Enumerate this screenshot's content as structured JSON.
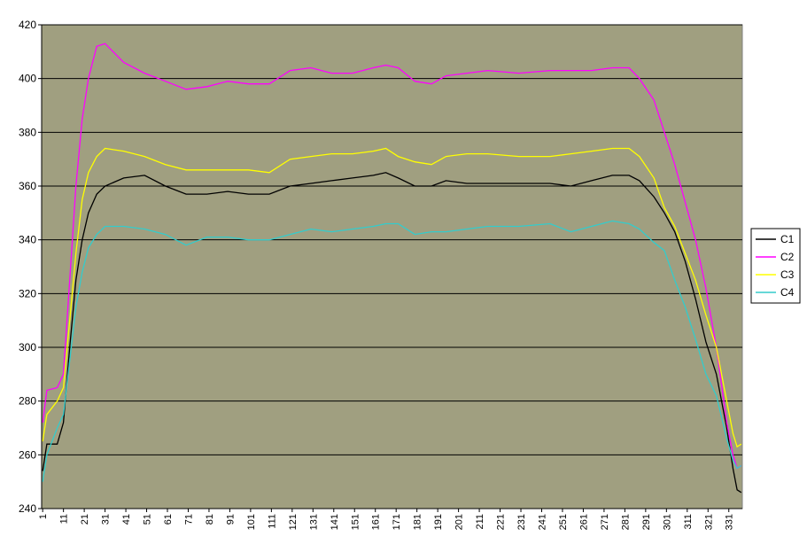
{
  "chart_data": {
    "type": "line",
    "x": [
      1,
      3,
      8,
      11,
      14,
      17,
      20,
      23,
      27,
      31,
      40,
      50,
      60,
      70,
      80,
      90,
      100,
      110,
      120,
      130,
      140,
      150,
      160,
      166,
      172,
      180,
      188,
      195,
      205,
      215,
      230,
      245,
      255,
      265,
      275,
      283,
      288,
      295,
      300,
      305,
      310,
      315,
      320,
      325,
      330,
      333,
      335,
      337
    ],
    "series": [
      {
        "name": "C1",
        "color": "#000000",
        "values": [
          254,
          264,
          264,
          272,
          300,
          325,
          340,
          350,
          357,
          360,
          363,
          364,
          360,
          357,
          357,
          358,
          357,
          357,
          360,
          361,
          362,
          363,
          364,
          365,
          363,
          360,
          360,
          362,
          361,
          361,
          361,
          361,
          360,
          362,
          364,
          364,
          362,
          356,
          350,
          343,
          332,
          318,
          302,
          290,
          270,
          255,
          247,
          246
        ]
      },
      {
        "name": "C2",
        "color": "#ff00ff",
        "values": [
          272,
          284,
          285,
          290,
          325,
          360,
          385,
          400,
          412,
          413,
          406,
          402,
          399,
          396,
          397,
          399,
          398,
          398,
          403,
          404,
          402,
          402,
          404,
          405,
          404,
          399,
          398,
          401,
          402,
          403,
          402,
          403,
          403,
          403,
          404,
          404,
          400,
          392,
          380,
          368,
          354,
          340,
          322,
          300,
          272,
          260,
          255,
          256
        ]
      },
      {
        "name": "C3",
        "color": "#ffff00",
        "values": [
          265,
          275,
          280,
          285,
          310,
          335,
          355,
          365,
          371,
          374,
          373,
          371,
          368,
          366,
          366,
          366,
          366,
          365,
          370,
          371,
          372,
          372,
          373,
          374,
          371,
          369,
          368,
          371,
          372,
          372,
          371,
          371,
          372,
          373,
          374,
          374,
          371,
          363,
          352,
          345,
          335,
          325,
          312,
          300,
          280,
          268,
          263,
          264
        ]
      },
      {
        "name": "C4",
        "color": "#33cccc",
        "values": [
          250,
          260,
          270,
          275,
          295,
          315,
          328,
          337,
          342,
          345,
          345,
          344,
          342,
          338,
          341,
          341,
          340,
          340,
          342,
          344,
          343,
          344,
          345,
          346,
          346,
          342,
          343,
          343,
          344,
          345,
          345,
          346,
          343,
          345,
          347,
          346,
          344,
          339,
          336,
          325,
          315,
          303,
          290,
          282,
          266,
          258,
          255,
          256
        ]
      }
    ],
    "xlim": [
      0.5,
      337.5
    ],
    "xticks": [
      1,
      11,
      21,
      31,
      41,
      51,
      61,
      71,
      81,
      91,
      101,
      111,
      121,
      131,
      141,
      151,
      161,
      171,
      181,
      191,
      201,
      211,
      221,
      231,
      241,
      251,
      261,
      271,
      281,
      291,
      301,
      311,
      321,
      331
    ],
    "ylim": [
      240,
      420
    ],
    "yticks": [
      240,
      260,
      280,
      300,
      320,
      340,
      360,
      380,
      400,
      420
    ],
    "grid": true,
    "legend": "right",
    "plot_color": "#a09f80"
  }
}
